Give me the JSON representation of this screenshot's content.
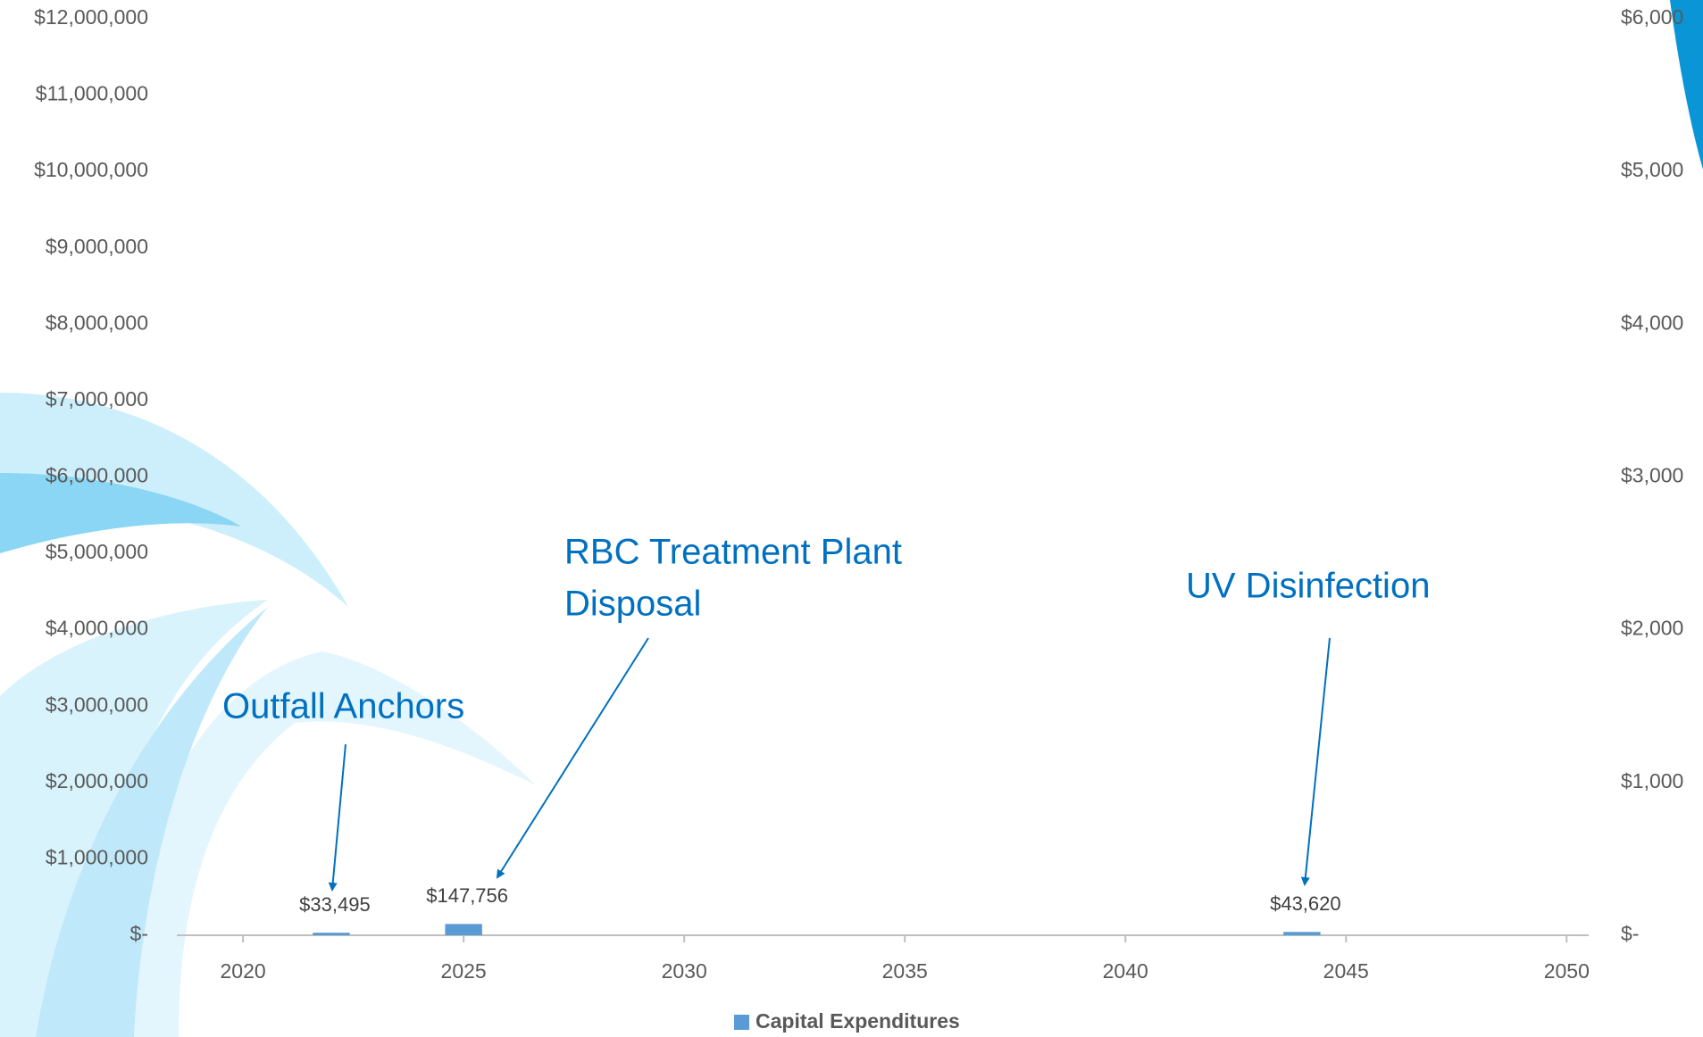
{
  "chart_data": {
    "type": "bar",
    "x": [
      2022,
      2025,
      2044
    ],
    "series": [
      {
        "name": "Capital Expenditures",
        "color": "#5b9bd5",
        "values": [
          33495,
          147756,
          43620
        ],
        "value_labels": [
          "$33,495",
          "$147,756",
          "$43,620"
        ]
      }
    ],
    "xlim": [
      2018.5,
      2050.5
    ],
    "xticks": [
      2020,
      2025,
      2030,
      2035,
      2040,
      2045,
      2050
    ],
    "ylim": [
      0,
      12000000
    ],
    "yticks": [
      {
        "value": 0,
        "label": "$-"
      },
      {
        "value": 1000000,
        "label": "$1,000,000"
      },
      {
        "value": 2000000,
        "label": "$2,000,000"
      },
      {
        "value": 3000000,
        "label": "$3,000,000"
      },
      {
        "value": 4000000,
        "label": "$4,000,000"
      },
      {
        "value": 5000000,
        "label": "$5,000,000"
      },
      {
        "value": 6000000,
        "label": "$6,000,000"
      },
      {
        "value": 7000000,
        "label": "$7,000,000"
      },
      {
        "value": 8000000,
        "label": "$8,000,000"
      },
      {
        "value": 9000000,
        "label": "$9,000,000"
      },
      {
        "value": 10000000,
        "label": "$10,000,000"
      },
      {
        "value": 11000000,
        "label": "$11,000,000"
      },
      {
        "value": 12000000,
        "label": "$12,000,000"
      }
    ],
    "y2lim": [
      0,
      6000
    ],
    "y2ticks": [
      {
        "value": 0,
        "label": "$-"
      },
      {
        "value": 1000,
        "label": "$1,000"
      },
      {
        "value": 2000,
        "label": "$2,000"
      },
      {
        "value": 3000,
        "label": "$3,000"
      },
      {
        "value": 4000,
        "label": "$4,000"
      },
      {
        "value": 5000,
        "label": "$5,000"
      },
      {
        "value": 6000,
        "label": "$6,000"
      }
    ],
    "annotations": [
      [
        "Outfall Anchors"
      ],
      [
        "RBC Treatment Plant",
        "Disposal"
      ],
      [
        "UV Disinfection"
      ]
    ],
    "legend": "bottom"
  }
}
